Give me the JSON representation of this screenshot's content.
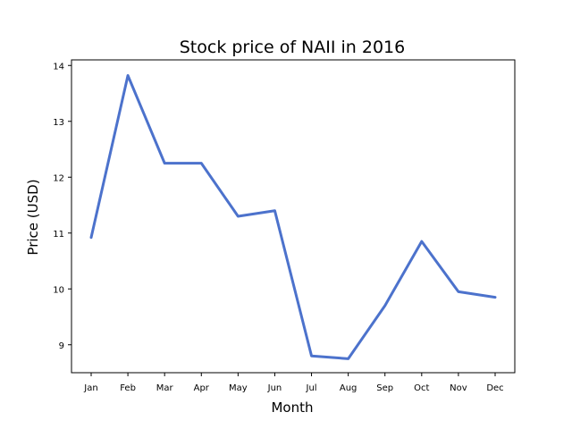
{
  "chart_data": {
    "type": "line",
    "title": "Stock price of NAII in 2016",
    "xlabel": "Month",
    "ylabel": "Price (USD)",
    "categories": [
      "Jan",
      "Feb",
      "Mar",
      "Apr",
      "May",
      "Jun",
      "Jul",
      "Aug",
      "Sep",
      "Oct",
      "Nov",
      "Dec"
    ],
    "values": [
      10.92,
      13.82,
      12.25,
      12.25,
      11.3,
      11.4,
      8.8,
      8.75,
      9.7,
      10.85,
      9.95,
      9.85
    ],
    "yticks": [
      9,
      10,
      11,
      12,
      13,
      14
    ],
    "ylim": [
      8.5,
      14.1
    ],
    "grid": false,
    "line_color": "#4c72cc"
  }
}
